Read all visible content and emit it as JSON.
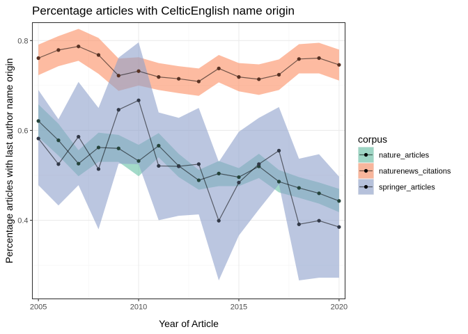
{
  "chart_data": {
    "type": "line",
    "title": "Percentage articles with CelticEnglish name origin",
    "xlabel": "Year of Article",
    "ylabel": "Percentage articles with last author name origin",
    "xlim": [
      2004.7,
      2020.3
    ],
    "ylim": [
      0.225,
      0.84
    ],
    "x_ticks": [
      2005,
      2010,
      2015,
      2020
    ],
    "x_tick_labels": [
      "2005",
      "2010",
      "2015",
      "2020"
    ],
    "y_ticks": [
      0.4,
      0.6,
      0.8
    ],
    "y_tick_labels": [
      "0.4",
      "0.6",
      "0.8"
    ],
    "grid": true,
    "legend": {
      "title": "corpus",
      "placement": "right"
    },
    "x": [
      2005,
      2006,
      2007,
      2008,
      2009,
      2010,
      2011,
      2012,
      2013,
      2014,
      2015,
      2016,
      2017,
      2018,
      2019,
      2020
    ],
    "series": [
      {
        "name": "nature_articles",
        "color": "#66c2a5",
        "values": [
          0.621,
          0.578,
          0.526,
          0.562,
          0.56,
          0.532,
          0.566,
          0.521,
          0.489,
          0.504,
          0.496,
          0.52,
          0.486,
          0.472,
          0.46,
          0.443
        ],
        "lower": [
          0.585,
          0.544,
          0.498,
          0.53,
          0.53,
          0.498,
          0.54,
          0.496,
          0.468,
          0.476,
          0.476,
          0.494,
          0.462,
          0.45,
          0.437,
          0.418
        ],
        "upper": [
          0.658,
          0.615,
          0.556,
          0.595,
          0.59,
          0.568,
          0.594,
          0.548,
          0.512,
          0.532,
          0.516,
          0.548,
          0.512,
          0.496,
          0.484,
          0.47
        ]
      },
      {
        "name": "naturenews_citations",
        "color": "#fc8d62",
        "values": [
          0.761,
          0.779,
          0.787,
          0.768,
          0.722,
          0.732,
          0.719,
          0.715,
          0.709,
          0.738,
          0.719,
          0.714,
          0.724,
          0.759,
          0.761,
          0.746
        ],
        "lower": [
          0.723,
          0.743,
          0.755,
          0.726,
          0.688,
          0.7,
          0.69,
          0.683,
          0.677,
          0.707,
          0.687,
          0.679,
          0.69,
          0.727,
          0.727,
          0.711
        ],
        "upper": [
          0.791,
          0.81,
          0.826,
          0.806,
          0.76,
          0.763,
          0.75,
          0.743,
          0.738,
          0.768,
          0.75,
          0.747,
          0.758,
          0.792,
          0.795,
          0.78
        ]
      },
      {
        "name": "springer_articles",
        "color": "#8da0cb",
        "values": [
          0.582,
          0.525,
          0.586,
          0.514,
          0.646,
          0.667,
          0.521,
          0.52,
          0.525,
          0.399,
          0.484,
          0.525,
          0.555,
          0.391,
          0.399,
          0.385
        ],
        "lower": [
          0.478,
          0.433,
          0.478,
          0.38,
          0.526,
          0.525,
          0.4,
          0.41,
          0.413,
          0.266,
          0.366,
          0.424,
          0.48,
          0.266,
          0.272,
          0.272
        ],
        "upper": [
          0.69,
          0.625,
          0.708,
          0.65,
          0.762,
          0.796,
          0.64,
          0.628,
          0.65,
          0.53,
          0.597,
          0.628,
          0.652,
          0.537,
          0.547,
          0.497
        ]
      }
    ]
  }
}
